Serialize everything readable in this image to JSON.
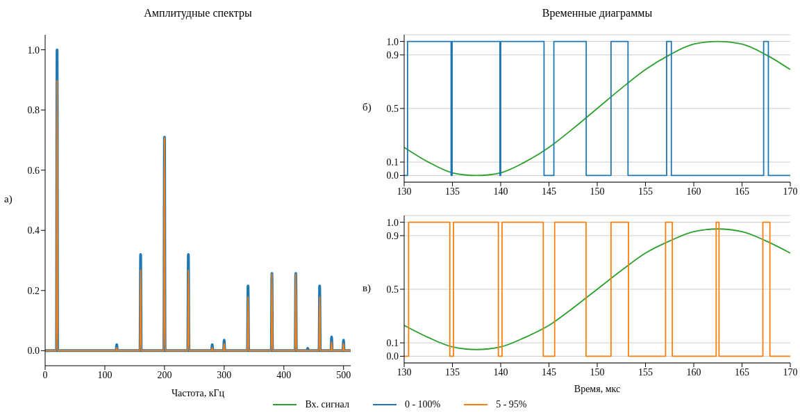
{
  "chart_data": [
    {
      "type": "line",
      "title": "Амплитудные спектры",
      "xlabel": "Частота, кГц",
      "annotations": [
        "а)"
      ],
      "legend": "bottom",
      "xlim": [
        0,
        512
      ],
      "xticks": [
        0,
        100,
        200,
        300,
        400,
        500
      ],
      "ylim": [
        -0.05,
        1.05
      ],
      "yticks": [
        {
          "value": 0,
          "label": "0.0"
        },
        {
          "value": 0.2,
          "label": "0.2"
        },
        {
          "value": 0.4,
          "label": "0.4"
        },
        {
          "value": 0.6,
          "label": "0.6"
        },
        {
          "value": 0.8,
          "label": "0.8"
        },
        {
          "value": 1,
          "label": "1.0"
        }
      ],
      "series": [
        {
          "name": "0 - 100%",
          "color": "#1f77b4",
          "x": [
            0,
            19,
            20,
            21,
            119,
            120,
            121,
            159,
            160,
            161,
            199,
            200,
            201,
            239,
            240,
            241,
            279,
            280,
            281,
            299,
            300,
            301,
            339,
            340,
            341,
            379,
            380,
            381,
            419,
            420,
            421,
            439,
            440,
            441,
            459,
            460,
            461,
            479,
            480,
            481,
            499,
            500,
            501,
            512
          ],
          "values": [
            0,
            0,
            1.0,
            0,
            0,
            0.02,
            0,
            0,
            0.32,
            0,
            0,
            0.71,
            0,
            0,
            0.32,
            0,
            0,
            0.02,
            0,
            0,
            0.035,
            0,
            0,
            0.215,
            0,
            0,
            0.257,
            0,
            0,
            0.257,
            0,
            0,
            0.008,
            0,
            0,
            0.215,
            0,
            0,
            0.046,
            0,
            0,
            0.035,
            0,
            0
          ]
        },
        {
          "name": "5 - 95%",
          "color": "#ff7f0e",
          "x": [
            0,
            19,
            20,
            21,
            119,
            120,
            121,
            159,
            160,
            161,
            199,
            200,
            201,
            239,
            240,
            241,
            279,
            280,
            281,
            299,
            300,
            301,
            339,
            340,
            341,
            379,
            380,
            381,
            419,
            420,
            421,
            439,
            440,
            441,
            459,
            460,
            461,
            479,
            480,
            481,
            499,
            500,
            501,
            512
          ],
          "values": [
            0,
            0,
            0.9,
            0,
            0,
            0.01,
            0,
            0,
            0.27,
            0,
            0,
            0.71,
            0,
            0,
            0.27,
            0,
            0,
            0.01,
            0,
            0,
            0.023,
            0,
            0,
            0.18,
            0,
            0,
            0.257,
            0,
            0,
            0.257,
            0,
            0,
            0,
            0,
            0,
            0.18,
            0,
            0,
            0.03,
            0,
            0,
            0.023,
            0,
            0
          ]
        }
      ]
    },
    {
      "type": "line",
      "title": "Временные диаграммы",
      "annotations": [
        "б)"
      ],
      "xlim": [
        130,
        170
      ],
      "xticks": [
        130,
        135,
        140,
        145,
        150,
        155,
        160,
        165,
        170
      ],
      "ylim": [
        -0.05,
        1.05
      ],
      "yticks": [
        {
          "value": 0,
          "label": "0.0"
        },
        {
          "value": 0.1,
          "label": "0.1"
        },
        {
          "value": 0.5,
          "label": "0.5"
        },
        {
          "value": 0.9,
          "label": "0.9"
        },
        {
          "value": 1,
          "label": "1.0"
        }
      ],
      "grid": "y",
      "legend": "bottom",
      "series": [
        {
          "name": "Вх. сигнал",
          "color": "#2ca02c",
          "x": [
            130,
            132.5,
            135,
            137.5,
            140,
            142.5,
            145,
            147.5,
            150,
            152.5,
            155,
            157.5,
            160,
            162.5,
            165,
            167.5,
            170
          ],
          "values": [
            0.21,
            0.1,
            0.02,
            0,
            0.02,
            0.1,
            0.21,
            0.35,
            0.5,
            0.65,
            0.79,
            0.9,
            0.98,
            1.0,
            0.98,
            0.9,
            0.79
          ]
        },
        {
          "name": "0 - 100%",
          "type": "step",
          "color": "#1f77b4",
          "x": [
            130,
            130.35,
            134.86,
            134.97,
            139.92,
            140.0,
            144.49,
            145.51,
            148.86,
            151.43,
            153.19,
            157.19,
            157.68,
            167.24,
            167.73,
            170
          ],
          "values": [
            0,
            1,
            0,
            1,
            0,
            1,
            0,
            1,
            0,
            1,
            0,
            1,
            0,
            1,
            0,
            0
          ]
        }
      ]
    },
    {
      "type": "line",
      "xlabel": "Время, мкс",
      "annotations": [
        "в)"
      ],
      "xlim": [
        130,
        170
      ],
      "xticks": [
        130,
        135,
        140,
        145,
        150,
        155,
        160,
        165,
        170
      ],
      "ylim": [
        -0.05,
        1.05
      ],
      "yticks": [
        {
          "value": 0,
          "label": "0.0"
        },
        {
          "value": 0.1,
          "label": "0.1"
        },
        {
          "value": 0.5,
          "label": "0.5"
        },
        {
          "value": 0.9,
          "label": "0.9"
        },
        {
          "value": 1,
          "label": "1.0"
        }
      ],
      "grid": "y",
      "legend": "bottom",
      "series": [
        {
          "name": "Вх. сигнал",
          "color": "#2ca02c",
          "x": [
            130,
            132.5,
            135,
            137.5,
            140,
            142.5,
            145,
            147.5,
            150,
            152.5,
            155,
            157.5,
            160,
            162.5,
            165,
            167.5,
            170
          ],
          "values": [
            0.23,
            0.14,
            0.07,
            0.05,
            0.07,
            0.14,
            0.23,
            0.36,
            0.5,
            0.64,
            0.77,
            0.86,
            0.93,
            0.95,
            0.93,
            0.86,
            0.77
          ]
        },
        {
          "name": "5 - 95%",
          "type": "step",
          "color": "#ff7f0e",
          "x": [
            130,
            130.46,
            134.73,
            135.11,
            139.76,
            140.14,
            144.41,
            145.59,
            148.84,
            151.43,
            153.24,
            157.08,
            157.78,
            162.32,
            162.62,
            167.16,
            167.89,
            170
          ],
          "values": [
            0,
            1,
            0,
            1,
            0,
            1,
            0,
            1,
            0,
            1,
            0,
            1,
            0,
            1,
            0,
            1,
            0,
            0
          ]
        }
      ]
    }
  ]
}
